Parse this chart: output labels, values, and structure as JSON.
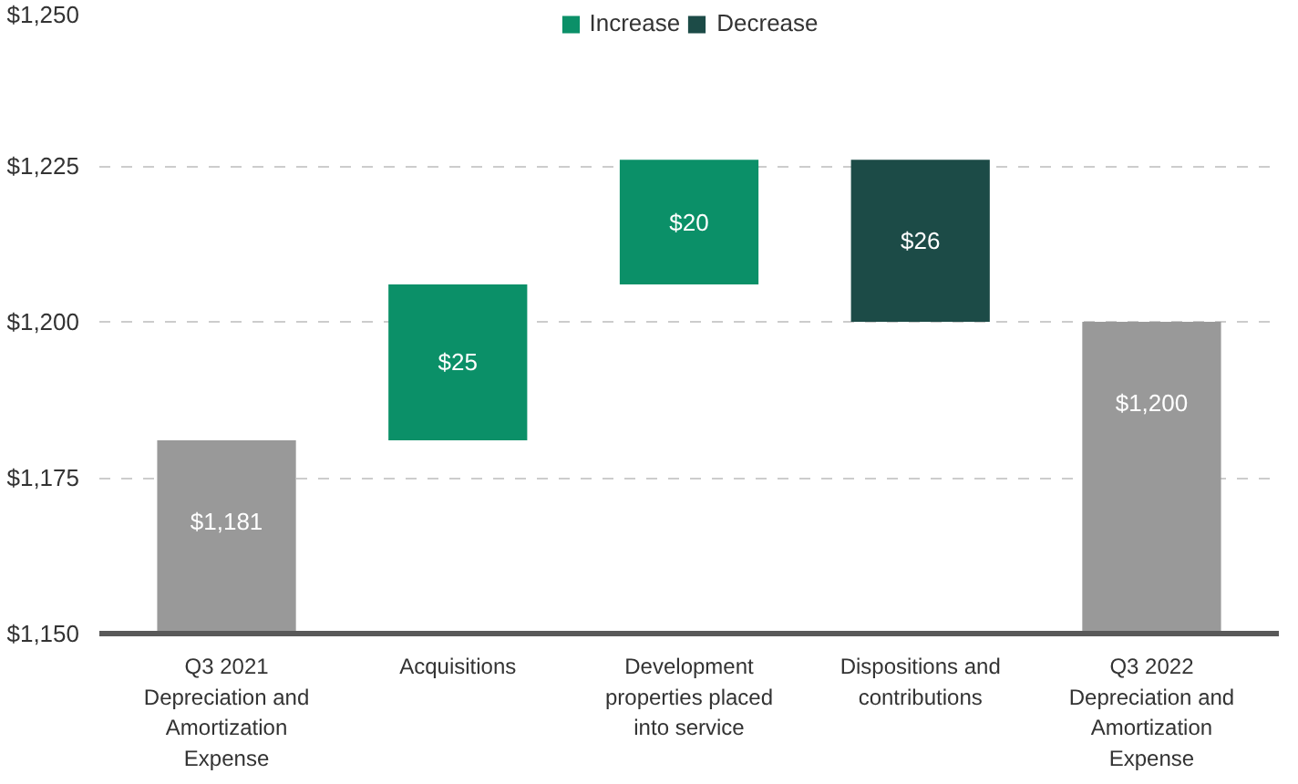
{
  "chart_data": {
    "type": "bar",
    "categories": [
      "Q3 2021 Depreciation and Amortization Expense",
      "Acquisitions",
      "Development properties placed into service",
      "Dispositions and contributions",
      "Q3 2022 Depreciation and Amortization Expense"
    ],
    "series": [
      {
        "color": "#999999",
        "values": [
          1181,
          null,
          null,
          null,
          1200
        ],
        "value_labels": [
          "$1,181",
          null,
          null,
          null,
          "$1,200"
        ]
      },
      {
        "name": "Increase",
        "color": "#0b9068",
        "values": [
          null,
          25,
          20,
          null,
          null
        ],
        "base": [
          null,
          1181,
          1206,
          null,
          null
        ],
        "value_labels": [
          null,
          "$25",
          "$20",
          null,
          null
        ]
      },
      {
        "name": "Decrease",
        "color": "#1c4b47",
        "values": [
          null,
          null,
          null,
          26,
          null
        ],
        "base": [
          null,
          null,
          null,
          1200,
          null
        ],
        "value_labels": [
          null,
          null,
          null,
          "$26",
          null
        ]
      }
    ],
    "ylim": [
      1150,
      1250
    ],
    "yticks": [
      {
        "value": 1150,
        "label": "$1,150"
      },
      {
        "value": 1175,
        "label": "$1,175"
      },
      {
        "value": 1200,
        "label": "$1,200"
      },
      {
        "value": 1225,
        "label": "$1,225"
      },
      {
        "value": 1250,
        "label": "$1,250"
      }
    ],
    "grid": "y",
    "legend": "top"
  }
}
